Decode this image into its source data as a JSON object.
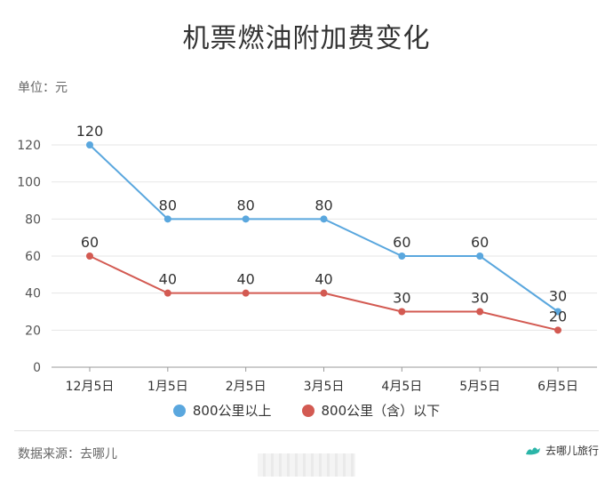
{
  "chart_data": {
    "type": "line",
    "title": "机票燃油附加费变化",
    "unit_label": "单位：元",
    "categories": [
      "12月5日",
      "1月5日",
      "2月5日",
      "3月5日",
      "4月5日",
      "5月5日",
      "6月5日"
    ],
    "series": [
      {
        "name": "800公里以上",
        "color": "#5aa7de",
        "values": [
          120,
          80,
          80,
          80,
          60,
          60,
          30
        ]
      },
      {
        "name": "800公里（含）以下",
        "color": "#d35a52",
        "values": [
          60,
          40,
          40,
          40,
          30,
          30,
          20
        ]
      }
    ],
    "ylim": [
      0,
      120
    ],
    "yticks": [
      0,
      20,
      40,
      60,
      80,
      100,
      120
    ],
    "grid": true,
    "legend_position": "bottom"
  },
  "footer": {
    "source": "数据来源：去哪儿",
    "brand": "去哪儿旅行"
  },
  "colors": {
    "axis_text": "#555555",
    "grid": "#e6e6e6",
    "baseline": "#999999"
  }
}
